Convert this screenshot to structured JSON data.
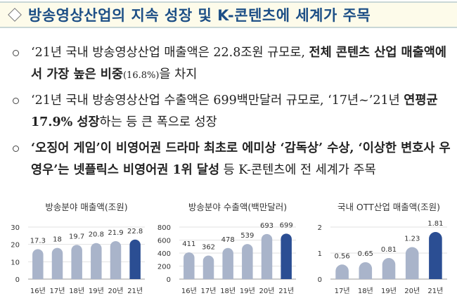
{
  "header": {
    "title": "방송영상산업의 지속 성장 및 K-콘텐츠에 세계가 주목",
    "icon": "diamond-icon"
  },
  "bullets": [
    {
      "segments": [
        {
          "text": "‘21년 국내 방송영상산업 매출액은 22.8조원 규모로, ",
          "bold": false
        },
        {
          "text": "전체 콘텐츠 산업 매출액에서 가장 높은 비중",
          "bold": true
        },
        {
          "text": "(16.8%)",
          "bold": false,
          "small": true
        },
        {
          "text": "을 차지",
          "bold": false
        }
      ]
    },
    {
      "segments": [
        {
          "text": "‘21년 국내 방송영상산업 수출액은 699백만달러 규모로, ‘17년~’21년 ",
          "bold": false
        },
        {
          "text": "연평균 17.9% 성장",
          "bold": true
        },
        {
          "text": "하는 등 큰 폭으로 성장",
          "bold": false
        }
      ]
    },
    {
      "segments": [
        {
          "text": "‘오징어 게임’이 비영어권 드라마 최초로 에미상 ‘감독상’ 수상, ‘이상한 변호사 우영우’는 넷플릭스 비영어권 1위 달성",
          "bold": true
        },
        {
          "text": " 등 K-콘텐츠에 전 세계가 주목",
          "bold": false
        }
      ]
    }
  ],
  "colors": {
    "bar": "#a9b4ca",
    "highlight": "#2b4e93",
    "title": "#1d4f86"
  },
  "chart_data": [
    {
      "type": "bar",
      "title": "방송분야 매출액(조원)",
      "categories": [
        "16년",
        "17년",
        "18년",
        "19년",
        "20년",
        "21년"
      ],
      "values": [
        17.3,
        18,
        19.7,
        20.8,
        21.9,
        22.8
      ],
      "labels": [
        "17.3",
        "18",
        "19.7",
        "20.8",
        "21.9",
        "22.8"
      ],
      "yticks": [
        "0",
        "10",
        "20",
        "30"
      ],
      "ylim": [
        0,
        30
      ],
      "grid": true
    },
    {
      "type": "bar",
      "title": "방송분야 수출액(백만달러)",
      "categories": [
        "16년",
        "17년",
        "18년",
        "19년",
        "20년",
        "21년"
      ],
      "values": [
        411,
        362,
        478,
        539,
        693,
        699
      ],
      "labels": [
        "411",
        "362",
        "478",
        "539",
        "693",
        "699"
      ],
      "yticks": [
        "0",
        "200",
        "400",
        "600",
        "800"
      ],
      "ylim": [
        0,
        800
      ],
      "grid": true
    },
    {
      "type": "bar",
      "title": "국내 OTT산업 매출액(조원)",
      "categories": [
        "17년",
        "18년",
        "19년",
        "20년",
        "21년"
      ],
      "values": [
        0.56,
        0.65,
        0.81,
        1.23,
        1.81
      ],
      "labels": [
        "0.56",
        "0.65",
        "0.81",
        "1.23",
        "1.81"
      ],
      "yticks": [
        "0",
        "1",
        "2"
      ],
      "ylim": [
        0,
        2
      ],
      "grid": true
    }
  ]
}
